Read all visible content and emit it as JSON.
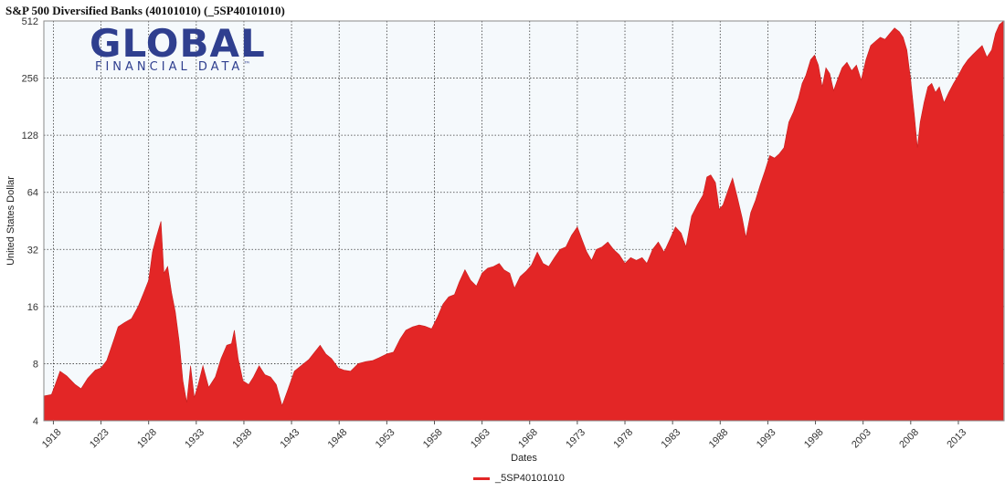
{
  "header": {
    "title": "S&P 500 Diversified Banks (40101010) (_5SP40101010)"
  },
  "logo": {
    "main": "GLOBAL",
    "sub": "FINANCIAL DATA",
    "tm": "™",
    "color": "#2f3f8f"
  },
  "legend": {
    "label": "_5SP40101010"
  },
  "colors": {
    "series": "#e32626",
    "plot_bg": "#f5f9fc",
    "grid": "#3a3a3a"
  },
  "chart_data": {
    "type": "area",
    "title": "S&P 500 Diversified Banks (40101010) (_5SP40101010)",
    "xlabel": "Dates",
    "ylabel": "United States Dollar",
    "y_scale": "log2",
    "ylim": [
      4,
      512
    ],
    "xlim": [
      1917.0,
      2017.8
    ],
    "grid": true,
    "legend_position": "bottom-center",
    "y_ticks": [
      4,
      8,
      16,
      32,
      64,
      128,
      256,
      512
    ],
    "y_tick_labels": [
      "4",
      "8",
      "16",
      "32",
      "64",
      "128",
      "256",
      "512"
    ],
    "x_ticks": [
      1918,
      1923,
      1928,
      1933,
      1938,
      1943,
      1948,
      1953,
      1958,
      1963,
      1968,
      1973,
      1978,
      1983,
      1988,
      1993,
      1998,
      2003,
      2008,
      2013
    ],
    "x_tick_labels": [
      "1918",
      "1923",
      "1928",
      "1933",
      "1938",
      "1943",
      "1948",
      "1953",
      "1958",
      "1963",
      "1968",
      "1973",
      "1978",
      "1983",
      "1988",
      "1993",
      "1998",
      "2003",
      "2008",
      "2013"
    ],
    "series": [
      {
        "name": "_5SP40101010",
        "points": [
          [
            1917.0,
            5.4
          ],
          [
            1917.8,
            5.5
          ],
          [
            1918.2,
            6.2
          ],
          [
            1918.7,
            7.3
          ],
          [
            1919.4,
            6.9
          ],
          [
            1920.3,
            6.2
          ],
          [
            1920.9,
            5.9
          ],
          [
            1921.6,
            6.7
          ],
          [
            1922.4,
            7.4
          ],
          [
            1923.0,
            7.6
          ],
          [
            1923.6,
            8.3
          ],
          [
            1924.3,
            10.5
          ],
          [
            1924.8,
            12.5
          ],
          [
            1925.5,
            13.2
          ],
          [
            1926.2,
            13.8
          ],
          [
            1926.9,
            16.0
          ],
          [
            1927.5,
            19.0
          ],
          [
            1928.0,
            22.0
          ],
          [
            1928.4,
            31.0
          ],
          [
            1928.8,
            37.0
          ],
          [
            1929.3,
            45.0
          ],
          [
            1929.6,
            24.0
          ],
          [
            1930.0,
            26.0
          ],
          [
            1930.4,
            19.0
          ],
          [
            1930.8,
            15.0
          ],
          [
            1931.2,
            10.5
          ],
          [
            1931.6,
            6.5
          ],
          [
            1932.0,
            5.0
          ],
          [
            1932.4,
            7.8
          ],
          [
            1932.8,
            5.3
          ],
          [
            1933.2,
            6.2
          ],
          [
            1933.7,
            7.8
          ],
          [
            1934.3,
            6.0
          ],
          [
            1935.0,
            6.8
          ],
          [
            1935.6,
            8.5
          ],
          [
            1936.2,
            10.0
          ],
          [
            1936.7,
            10.2
          ],
          [
            1937.0,
            12.0
          ],
          [
            1937.4,
            8.5
          ],
          [
            1937.9,
            6.5
          ],
          [
            1938.5,
            6.2
          ],
          [
            1939.0,
            6.8
          ],
          [
            1939.6,
            7.8
          ],
          [
            1940.2,
            7.0
          ],
          [
            1940.8,
            6.8
          ],
          [
            1941.4,
            6.2
          ],
          [
            1942.0,
            4.8
          ],
          [
            1942.6,
            5.8
          ],
          [
            1943.3,
            7.3
          ],
          [
            1944.0,
            7.8
          ],
          [
            1944.8,
            8.4
          ],
          [
            1945.5,
            9.3
          ],
          [
            1946.0,
            10.0
          ],
          [
            1946.6,
            9.0
          ],
          [
            1947.2,
            8.5
          ],
          [
            1947.9,
            7.6
          ],
          [
            1948.5,
            7.4
          ],
          [
            1949.2,
            7.3
          ],
          [
            1950.0,
            8.0
          ],
          [
            1950.8,
            8.2
          ],
          [
            1951.5,
            8.3
          ],
          [
            1952.2,
            8.6
          ],
          [
            1953.0,
            9.0
          ],
          [
            1953.7,
            9.2
          ],
          [
            1954.4,
            10.8
          ],
          [
            1955.0,
            12.0
          ],
          [
            1955.7,
            12.5
          ],
          [
            1956.4,
            12.8
          ],
          [
            1957.0,
            12.6
          ],
          [
            1957.7,
            12.2
          ],
          [
            1958.3,
            14.0
          ],
          [
            1958.9,
            16.5
          ],
          [
            1959.5,
            18.0
          ],
          [
            1960.1,
            18.5
          ],
          [
            1960.6,
            21.5
          ],
          [
            1961.2,
            25.0
          ],
          [
            1961.8,
            22.0
          ],
          [
            1962.4,
            20.5
          ],
          [
            1963.0,
            24.0
          ],
          [
            1963.6,
            25.5
          ],
          [
            1964.2,
            26.0
          ],
          [
            1964.8,
            27.0
          ],
          [
            1965.3,
            25.0
          ],
          [
            1965.9,
            24.0
          ],
          [
            1966.4,
            20.0
          ],
          [
            1967.0,
            23.0
          ],
          [
            1967.6,
            24.5
          ],
          [
            1968.2,
            26.5
          ],
          [
            1968.8,
            31.0
          ],
          [
            1969.4,
            27.0
          ],
          [
            1970.0,
            26.0
          ],
          [
            1970.6,
            29.0
          ],
          [
            1971.2,
            32.0
          ],
          [
            1971.8,
            33.0
          ],
          [
            1972.4,
            38.0
          ],
          [
            1973.0,
            42.0
          ],
          [
            1973.5,
            36.0
          ],
          [
            1974.0,
            31.0
          ],
          [
            1974.5,
            28.0
          ],
          [
            1975.0,
            32.0
          ],
          [
            1975.6,
            33.0
          ],
          [
            1976.2,
            35.0
          ],
          [
            1976.8,
            32.0
          ],
          [
            1977.4,
            30.0
          ],
          [
            1978.0,
            27.0
          ],
          [
            1978.6,
            29.0
          ],
          [
            1979.2,
            28.0
          ],
          [
            1979.8,
            29.0
          ],
          [
            1980.3,
            27.0
          ],
          [
            1980.9,
            32.0
          ],
          [
            1981.5,
            35.0
          ],
          [
            1982.1,
            31.0
          ],
          [
            1982.7,
            36.0
          ],
          [
            1983.3,
            42.0
          ],
          [
            1983.9,
            39.0
          ],
          [
            1984.4,
            33.0
          ],
          [
            1985.0,
            48.0
          ],
          [
            1985.6,
            55.0
          ],
          [
            1986.2,
            62.0
          ],
          [
            1986.6,
            77.0
          ],
          [
            1987.0,
            79.0
          ],
          [
            1987.5,
            72.0
          ],
          [
            1987.9,
            52.0
          ],
          [
            1988.3,
            55.0
          ],
          [
            1988.8,
            65.0
          ],
          [
            1989.3,
            76.0
          ],
          [
            1989.8,
            60.0
          ],
          [
            1990.3,
            47.0
          ],
          [
            1990.7,
            37.0
          ],
          [
            1991.2,
            50.0
          ],
          [
            1991.7,
            58.0
          ],
          [
            1992.2,
            70.0
          ],
          [
            1992.7,
            83.0
          ],
          [
            1993.2,
            100.0
          ],
          [
            1993.7,
            97.0
          ],
          [
            1994.2,
            102.0
          ],
          [
            1994.7,
            110.0
          ],
          [
            1995.2,
            150.0
          ],
          [
            1995.7,
            170.0
          ],
          [
            1996.2,
            200.0
          ],
          [
            1996.6,
            240.0
          ],
          [
            1997.0,
            265.0
          ],
          [
            1997.5,
            320.0
          ],
          [
            1997.9,
            338.0
          ],
          [
            1998.3,
            300.0
          ],
          [
            1998.7,
            230.0
          ],
          [
            1999.1,
            290.0
          ],
          [
            1999.5,
            270.0
          ],
          [
            1999.9,
            220.0
          ],
          [
            2000.3,
            250.0
          ],
          [
            2000.8,
            290.0
          ],
          [
            2001.3,
            310.0
          ],
          [
            2001.8,
            280.0
          ],
          [
            2002.3,
            300.0
          ],
          [
            2002.8,
            250.0
          ],
          [
            2003.3,
            320.0
          ],
          [
            2003.8,
            380.0
          ],
          [
            2004.3,
            400.0
          ],
          [
            2004.8,
            420.0
          ],
          [
            2005.3,
            410.0
          ],
          [
            2005.8,
            440.0
          ],
          [
            2006.3,
            470.0
          ],
          [
            2006.8,
            450.0
          ],
          [
            2007.2,
            420.0
          ],
          [
            2007.6,
            360.0
          ],
          [
            2008.0,
            250.0
          ],
          [
            2008.4,
            160.0
          ],
          [
            2008.7,
            110.0
          ],
          [
            2009.0,
            150.0
          ],
          [
            2009.4,
            190.0
          ],
          [
            2009.8,
            230.0
          ],
          [
            2010.2,
            240.0
          ],
          [
            2010.6,
            215.0
          ],
          [
            2011.0,
            230.0
          ],
          [
            2011.5,
            190.0
          ],
          [
            2012.0,
            215.0
          ],
          [
            2012.5,
            240.0
          ],
          [
            2013.0,
            265.0
          ],
          [
            2013.5,
            295.0
          ],
          [
            2014.0,
            320.0
          ],
          [
            2014.5,
            340.0
          ],
          [
            2015.0,
            360.0
          ],
          [
            2015.5,
            380.0
          ],
          [
            2016.0,
            330.0
          ],
          [
            2016.5,
            360.0
          ],
          [
            2016.9,
            440.0
          ],
          [
            2017.3,
            490.0
          ],
          [
            2017.7,
            510.0
          ]
        ]
      }
    ]
  }
}
